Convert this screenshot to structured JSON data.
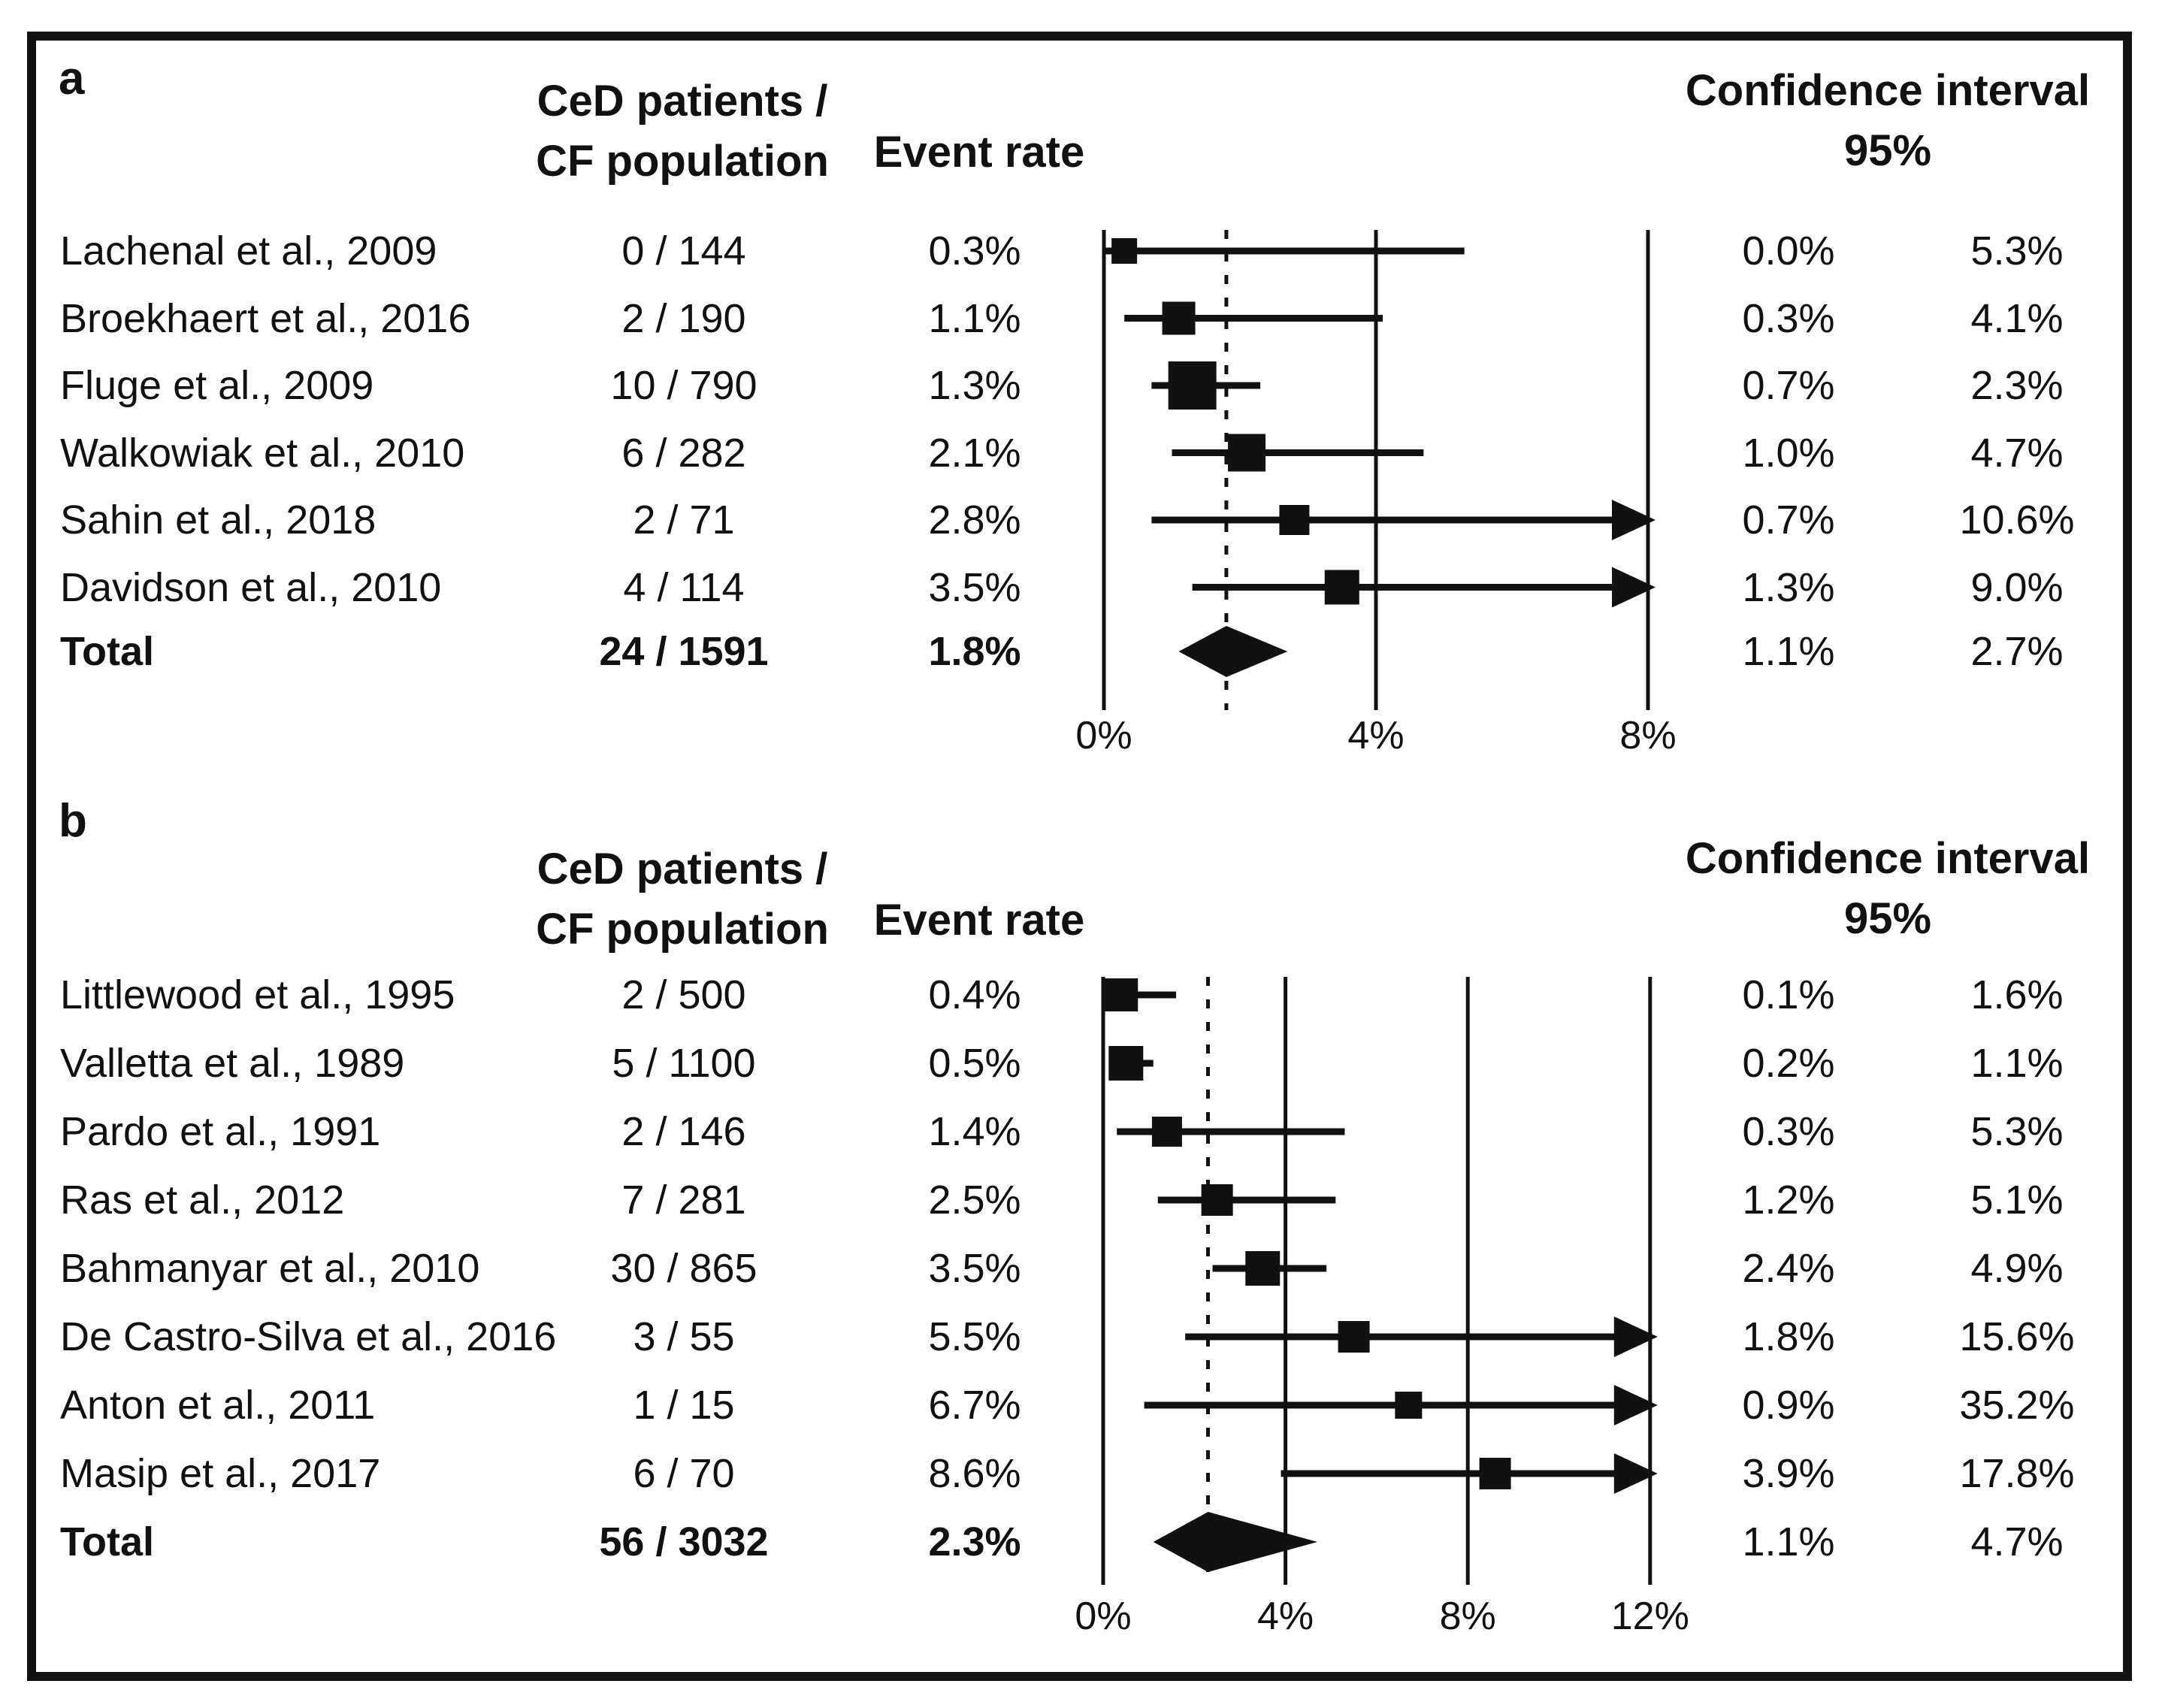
{
  "figure": {
    "panels": [
      {
        "label": "a",
        "headers": {
          "ratio_line1": "CeD patients /",
          "ratio_line2": "CF population",
          "event_rate": "Event rate",
          "ci_line1": "Confidence interval",
          "ci_line2": "95%"
        },
        "studies": [
          {
            "label": "Lachenal et al., 2009",
            "ratio": "0 / 144",
            "event_rate": "0.3%",
            "event_pct": 0.3,
            "ci_low": "0.0%",
            "ci_low_pct": 0.0,
            "ci_high": "5.3%",
            "ci_high_pct": 5.3,
            "marker_size": 34
          },
          {
            "label": "Broekhaert et al., 2016",
            "ratio": "2 / 190",
            "event_rate": "1.1%",
            "event_pct": 1.1,
            "ci_low": "0.3%",
            "ci_low_pct": 0.3,
            "ci_high": "4.1%",
            "ci_high_pct": 4.1,
            "marker_size": 44
          },
          {
            "label": "Fluge et al., 2009",
            "ratio": "10 / 790",
            "event_rate": "1.3%",
            "event_pct": 1.3,
            "ci_low": "0.7%",
            "ci_low_pct": 0.7,
            "ci_high": "2.3%",
            "ci_high_pct": 2.3,
            "marker_size": 64
          },
          {
            "label": "Walkowiak et al., 2010",
            "ratio": "6 / 282",
            "event_rate": "2.1%",
            "event_pct": 2.1,
            "ci_low": "1.0%",
            "ci_low_pct": 1.0,
            "ci_high": "4.7%",
            "ci_high_pct": 4.7,
            "marker_size": 50
          },
          {
            "label": "Sahin et al., 2018",
            "ratio": "2 / 71",
            "event_rate": "2.8%",
            "event_pct": 2.8,
            "ci_low": "0.7%",
            "ci_low_pct": 0.7,
            "ci_high": "10.6%",
            "ci_high_pct": 10.6,
            "marker_size": 40
          },
          {
            "label": "Davidson et al., 2010",
            "ratio": "4 / 114",
            "event_rate": "3.5%",
            "event_pct": 3.5,
            "ci_low": "1.3%",
            "ci_low_pct": 1.3,
            "ci_high": "9.0%",
            "ci_high_pct": 9.0,
            "marker_size": 46
          }
        ],
        "total": {
          "label": "Total",
          "ratio": "24 / 1591",
          "event_rate": "1.8%",
          "event_pct": 1.8,
          "ci_low": "1.1%",
          "ci_low_pct": 1.1,
          "ci_high": "2.7%",
          "ci_high_pct": 2.7
        },
        "axis": {
          "ticks": [
            "0%",
            "4%",
            "8%"
          ],
          "values": [
            0,
            4,
            8
          ],
          "max_pct": 8,
          "pooled_pct": 1.8
        }
      },
      {
        "label": "b",
        "headers": {
          "ratio_line1": "CeD patients /",
          "ratio_line2": "CF population",
          "event_rate": "Event rate",
          "ci_line1": "Confidence interval",
          "ci_line2": "95%"
        },
        "studies": [
          {
            "label": "Littlewood et al., 1995",
            "ratio": "2 / 500",
            "event_rate": "0.4%",
            "event_pct": 0.4,
            "ci_low": "0.1%",
            "ci_low_pct": 0.1,
            "ci_high": "1.6%",
            "ci_high_pct": 1.6,
            "marker_size": 44
          },
          {
            "label": "Valletta et al., 1989",
            "ratio": "5 / 1100",
            "event_rate": "0.5%",
            "event_pct": 0.5,
            "ci_low": "0.2%",
            "ci_low_pct": 0.2,
            "ci_high": "1.1%",
            "ci_high_pct": 1.1,
            "marker_size": 46
          },
          {
            "label": "Pardo et al., 1991",
            "ratio": "2 / 146",
            "event_rate": "1.4%",
            "event_pct": 1.4,
            "ci_low": "0.3%",
            "ci_low_pct": 0.3,
            "ci_high": "5.3%",
            "ci_high_pct": 5.3,
            "marker_size": 40
          },
          {
            "label": "Ras et al., 2012",
            "ratio": "7 / 281",
            "event_rate": "2.5%",
            "event_pct": 2.5,
            "ci_low": "1.2%",
            "ci_low_pct": 1.2,
            "ci_high": "5.1%",
            "ci_high_pct": 5.1,
            "marker_size": 42
          },
          {
            "label": "Bahmanyar et al., 2010",
            "ratio": "30 / 865",
            "event_rate": "3.5%",
            "event_pct": 3.5,
            "ci_low": "2.4%",
            "ci_low_pct": 2.4,
            "ci_high": "4.9%",
            "ci_high_pct": 4.9,
            "marker_size": 46
          },
          {
            "label": "De Castro-Silva et al., 2016",
            "ratio": "3 / 55",
            "event_rate": "5.5%",
            "event_pct": 5.5,
            "ci_low": "1.8%",
            "ci_low_pct": 1.8,
            "ci_high": "15.6%",
            "ci_high_pct": 15.6,
            "marker_size": 42
          },
          {
            "label": "Anton et al., 2011",
            "ratio": "1 / 15",
            "event_rate": "6.7%",
            "event_pct": 6.7,
            "ci_low": "0.9%",
            "ci_low_pct": 0.9,
            "ci_high": "35.2%",
            "ci_high_pct": 35.2,
            "marker_size": 36
          },
          {
            "label": "Masip et al., 2017",
            "ratio": "6 / 70",
            "event_rate": "8.6%",
            "event_pct": 8.6,
            "ci_low": "3.9%",
            "ci_low_pct": 3.9,
            "ci_high": "17.8%",
            "ci_high_pct": 17.8,
            "marker_size": 42
          }
        ],
        "total": {
          "label": "Total",
          "ratio": "56 / 3032",
          "event_rate": "2.3%",
          "event_pct": 2.3,
          "ci_low": "1.1%",
          "ci_low_pct": 1.1,
          "ci_high": "4.7%",
          "ci_high_pct": 4.7
        },
        "axis": {
          "ticks": [
            "0%",
            "4%",
            "8%",
            "12%"
          ],
          "values": [
            0,
            4,
            8,
            12
          ],
          "max_pct": 12,
          "pooled_pct": 2.3
        }
      }
    ]
  },
  "chart_data": [
    {
      "type": "scatter",
      "subtype": "forest_plot",
      "panel": "a",
      "columns": [
        "study",
        "CeD patients / CF population",
        "Event rate",
        "95% CI low",
        "95% CI high"
      ],
      "series": [
        {
          "name": "Lachenal et al., 2009",
          "events": 0,
          "population": 144,
          "event_rate_pct": 0.3,
          "ci95": [
            0.0,
            5.3
          ]
        },
        {
          "name": "Broekhaert et al., 2016",
          "events": 2,
          "population": 190,
          "event_rate_pct": 1.1,
          "ci95": [
            0.3,
            4.1
          ]
        },
        {
          "name": "Fluge et al., 2009",
          "events": 10,
          "population": 790,
          "event_rate_pct": 1.3,
          "ci95": [
            0.7,
            2.3
          ]
        },
        {
          "name": "Walkowiak et al., 2010",
          "events": 6,
          "population": 282,
          "event_rate_pct": 2.1,
          "ci95": [
            1.0,
            4.7
          ]
        },
        {
          "name": "Sahin et al., 2018",
          "events": 2,
          "population": 71,
          "event_rate_pct": 2.8,
          "ci95": [
            0.7,
            10.6
          ]
        },
        {
          "name": "Davidson et al., 2010",
          "events": 4,
          "population": 114,
          "event_rate_pct": 3.5,
          "ci95": [
            1.3,
            9.0
          ]
        }
      ],
      "pooled": {
        "name": "Total",
        "events": 24,
        "population": 1591,
        "event_rate_pct": 1.8,
        "ci95": [
          1.1,
          2.7
        ]
      },
      "xlabel": "Event rate",
      "x_ticks_pct": [
        0,
        4,
        8
      ],
      "xlim_pct": [
        0,
        8
      ],
      "reference_line_pct": 1.8,
      "grid": "vertical-solid",
      "marker": "black-square",
      "pooled_marker": "black-diamond"
    },
    {
      "type": "scatter",
      "subtype": "forest_plot",
      "panel": "b",
      "columns": [
        "study",
        "CeD patients / CF population",
        "Event rate",
        "95% CI low",
        "95% CI high"
      ],
      "series": [
        {
          "name": "Littlewood et al., 1995",
          "events": 2,
          "population": 500,
          "event_rate_pct": 0.4,
          "ci95": [
            0.1,
            1.6
          ]
        },
        {
          "name": "Valletta et al., 1989",
          "events": 5,
          "population": 1100,
          "event_rate_pct": 0.5,
          "ci95": [
            0.2,
            1.1
          ]
        },
        {
          "name": "Pardo et al., 1991",
          "events": 2,
          "population": 146,
          "event_rate_pct": 1.4,
          "ci95": [
            0.3,
            5.3
          ]
        },
        {
          "name": "Ras et al., 2012",
          "events": 7,
          "population": 281,
          "event_rate_pct": 2.5,
          "ci95": [
            1.2,
            5.1
          ]
        },
        {
          "name": "Bahmanyar et al., 2010",
          "events": 30,
          "population": 865,
          "event_rate_pct": 3.5,
          "ci95": [
            2.4,
            4.9
          ]
        },
        {
          "name": "De Castro-Silva et al., 2016",
          "events": 3,
          "population": 55,
          "event_rate_pct": 5.5,
          "ci95": [
            1.8,
            15.6
          ]
        },
        {
          "name": "Anton et al., 2011",
          "events": 1,
          "population": 15,
          "event_rate_pct": 6.7,
          "ci95": [
            0.9,
            35.2
          ]
        },
        {
          "name": "Masip et al., 2017",
          "events": 6,
          "population": 70,
          "event_rate_pct": 8.6,
          "ci95": [
            3.9,
            17.8
          ]
        }
      ],
      "pooled": {
        "name": "Total",
        "events": 56,
        "population": 3032,
        "event_rate_pct": 2.3,
        "ci95": [
          1.1,
          4.7
        ]
      },
      "xlabel": "Event rate",
      "x_ticks_pct": [
        0,
        4,
        8,
        12
      ],
      "xlim_pct": [
        0,
        12
      ],
      "reference_line_pct": 2.3,
      "grid": "vertical-solid",
      "marker": "black-square",
      "pooled_marker": "black-diamond"
    }
  ],
  "colors": {
    "ink": "#111111",
    "background": "#ffffff"
  }
}
